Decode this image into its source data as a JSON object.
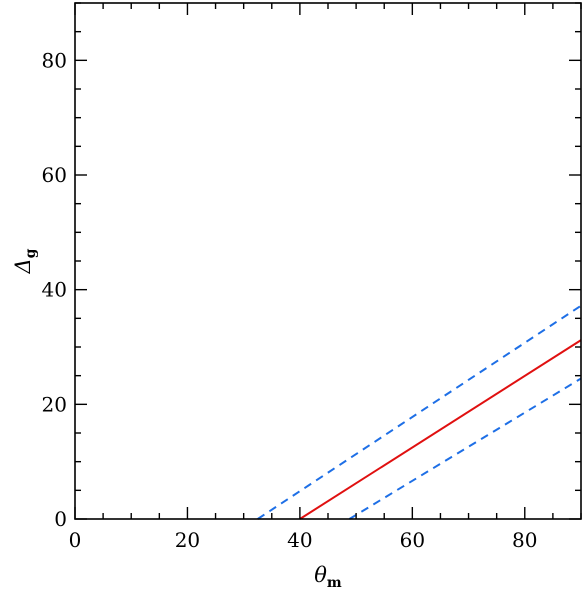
{
  "chart_data": {
    "type": "line",
    "title": "",
    "xlabel": "θ",
    "xlabel_sub": "m",
    "ylabel": "Δ",
    "ylabel_sub": "g",
    "xlim": [
      0,
      90
    ],
    "ylim": [
      0,
      90
    ],
    "xticks": [
      0,
      20,
      40,
      60,
      80
    ],
    "yticks": [
      0,
      20,
      40,
      60,
      80
    ],
    "grid": false,
    "legend": "none",
    "series": [
      {
        "color": "#1e6fe6",
        "style": "dashed",
        "x": [
          32.5,
          90
        ],
        "y": [
          0,
          37.2
        ]
      },
      {
        "color": "#e01010",
        "style": "solid",
        "x": [
          40,
          90
        ],
        "y": [
          0,
          31.2
        ]
      },
      {
        "color": "#1e6fe6",
        "style": "dashed",
        "x": [
          48.8,
          90
        ],
        "y": [
          0,
          24.5
        ]
      }
    ]
  }
}
